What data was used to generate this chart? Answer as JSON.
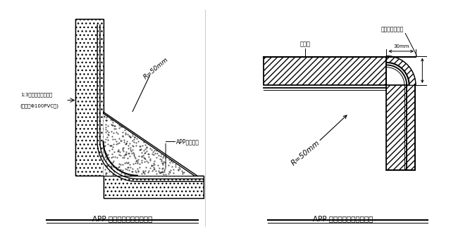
{
  "bg_color": "#ffffff",
  "title1": "APP 防水卷材基层阴角半径",
  "title2": "APP 防水卷材基层阳角半径",
  "label_r1": "R=50mm",
  "label_r2": "R=50mm",
  "label_app1": "APP防水卷材",
  "label_left1": "1:3水泥砂浆压实抹光",
  "label_left2": "(用直径Φ100PVC管)",
  "label_fangshui": "防水层",
  "label_shacheng": "此部分用砂浆抹",
  "label_30mm": "30mm",
  "fig_width": 6.67,
  "fig_height": 3.5
}
